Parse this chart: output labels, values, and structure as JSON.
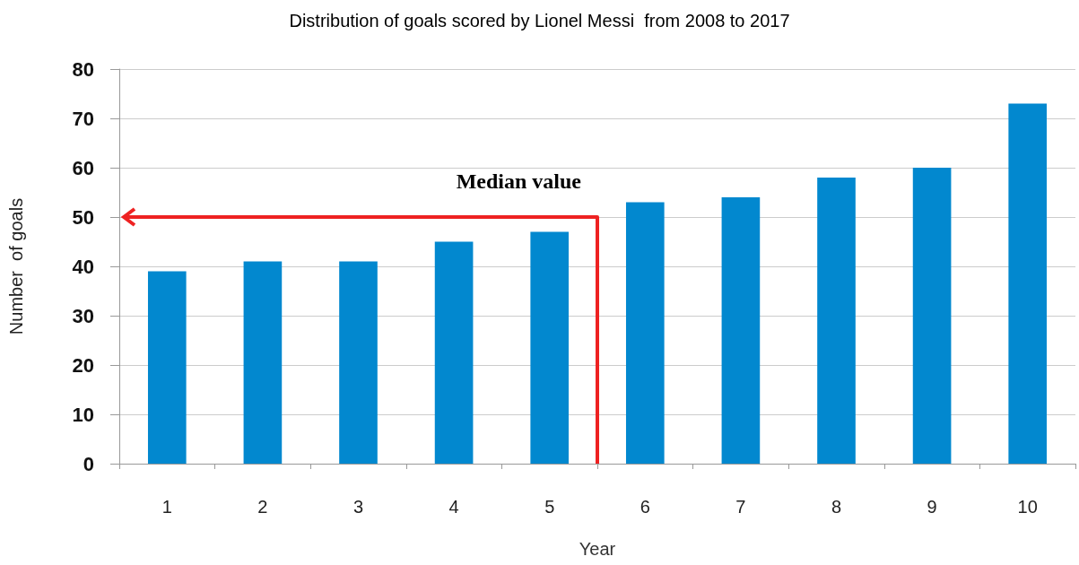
{
  "chart_data": {
    "type": "bar",
    "title": "Distribution of goals scored by Lionel Messi  from 2008 to 2017",
    "xlabel": "Year",
    "ylabel": "Number  of goals",
    "categories": [
      "1",
      "2",
      "3",
      "4",
      "5",
      "6",
      "7",
      "8",
      "9",
      "10"
    ],
    "values": [
      39,
      41,
      41,
      45,
      47,
      53,
      54,
      58,
      60,
      73
    ],
    "color": "#0288cf",
    "ylim": [
      0,
      80
    ],
    "yticks": [
      0,
      10,
      20,
      30,
      40,
      50,
      60,
      70,
      80
    ],
    "grid": "y",
    "ref_lines": [
      {
        "axis": "y",
        "value": 50,
        "label": "Median value",
        "color": "#ee2222"
      }
    ]
  }
}
